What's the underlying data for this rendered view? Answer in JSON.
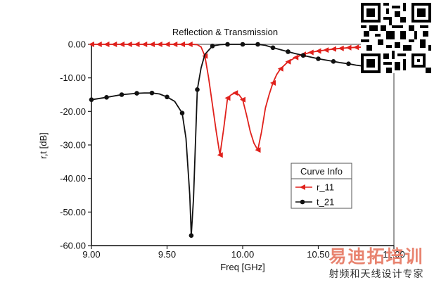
{
  "chart_data": {
    "type": "line",
    "title": "Reflection & Transmission",
    "xlabel": "Freq [GHz]",
    "ylabel": "r,t [dB]",
    "xlim": [
      9.0,
      11.0
    ],
    "ylim": [
      -60.0,
      0.0
    ],
    "x_ticks": [
      "9.00",
      "9.50",
      "10.00",
      "10.50",
      "11.00"
    ],
    "y_ticks": [
      "0.00",
      "-10.00",
      "-20.00",
      "-30.00",
      "-40.00",
      "-50.00",
      "-60.00"
    ],
    "grid": false,
    "legend": {
      "title": "Curve Info",
      "position": "right"
    },
    "series": [
      {
        "name": "r_11",
        "color": "#e0201b",
        "marker": "triangle-left",
        "points": [
          [
            9.0,
            0.0
          ],
          [
            9.05,
            0.0
          ],
          [
            9.1,
            0.0
          ],
          [
            9.15,
            0.0
          ],
          [
            9.2,
            0.0
          ],
          [
            9.25,
            0.0
          ],
          [
            9.3,
            0.0
          ],
          [
            9.35,
            0.0
          ],
          [
            9.4,
            0.0
          ],
          [
            9.45,
            0.0
          ],
          [
            9.5,
            0.0
          ],
          [
            9.55,
            0.0
          ],
          [
            9.6,
            0.0
          ],
          [
            9.65,
            0.0
          ],
          [
            9.7,
            -0.1
          ],
          [
            9.725,
            -0.8
          ],
          [
            9.75,
            -3.5
          ],
          [
            9.775,
            -10.0
          ],
          [
            9.8,
            -18.0
          ],
          [
            9.825,
            -26.0
          ],
          [
            9.85,
            -33.0
          ],
          [
            9.875,
            -25.0
          ],
          [
            9.9,
            -16.0
          ],
          [
            9.925,
            -15.0
          ],
          [
            9.95,
            -14.5
          ],
          [
            9.975,
            -15.0
          ],
          [
            10.0,
            -16.5
          ],
          [
            10.025,
            -21.0
          ],
          [
            10.05,
            -26.0
          ],
          [
            10.075,
            -29.5
          ],
          [
            10.1,
            -31.5
          ],
          [
            10.125,
            -26.0
          ],
          [
            10.15,
            -19.0
          ],
          [
            10.175,
            -15.0
          ],
          [
            10.2,
            -11.5
          ],
          [
            10.225,
            -9.0
          ],
          [
            10.25,
            -7.3
          ],
          [
            10.3,
            -5.2
          ],
          [
            10.35,
            -3.9
          ],
          [
            10.4,
            -3.0
          ],
          [
            10.45,
            -2.4
          ],
          [
            10.5,
            -2.0
          ],
          [
            10.55,
            -1.7
          ],
          [
            10.6,
            -1.4
          ],
          [
            10.65,
            -1.2
          ],
          [
            10.7,
            -1.0
          ],
          [
            10.75,
            -0.9
          ],
          [
            10.8,
            -0.8
          ]
        ],
        "marker_x": [
          9.0,
          9.05,
          9.1,
          9.15,
          9.2,
          9.25,
          9.3,
          9.35,
          9.4,
          9.45,
          9.5,
          9.55,
          9.6,
          9.65,
          9.75,
          9.85,
          9.9,
          9.95,
          10.0,
          10.1,
          10.2,
          10.25,
          10.3,
          10.35,
          10.4,
          10.45,
          10.5,
          10.55,
          10.6,
          10.65,
          10.7,
          10.75,
          10.8
        ]
      },
      {
        "name": "t_21",
        "color": "#111111",
        "marker": "circle",
        "points": [
          [
            9.0,
            -16.5
          ],
          [
            9.1,
            -15.8
          ],
          [
            9.2,
            -15.0
          ],
          [
            9.3,
            -14.6
          ],
          [
            9.35,
            -14.5
          ],
          [
            9.4,
            -14.5
          ],
          [
            9.45,
            -14.8
          ],
          [
            9.5,
            -15.7
          ],
          [
            9.55,
            -17.0
          ],
          [
            9.6,
            -20.5
          ],
          [
            9.625,
            -28.0
          ],
          [
            9.65,
            -45.0
          ],
          [
            9.66,
            -57.0
          ],
          [
            9.675,
            -46.0
          ],
          [
            9.7,
            -13.5
          ],
          [
            9.725,
            -7.0
          ],
          [
            9.75,
            -3.0
          ],
          [
            9.8,
            -0.5
          ],
          [
            9.85,
            -0.1
          ],
          [
            9.9,
            0.0
          ],
          [
            9.95,
            0.0
          ],
          [
            10.0,
            0.0
          ],
          [
            10.05,
            0.0
          ],
          [
            10.1,
            0.0
          ],
          [
            10.15,
            -0.3
          ],
          [
            10.2,
            -1.0
          ],
          [
            10.25,
            -1.6
          ],
          [
            10.3,
            -2.2
          ],
          [
            10.35,
            -2.8
          ],
          [
            10.4,
            -3.3
          ],
          [
            10.45,
            -3.8
          ],
          [
            10.5,
            -4.3
          ],
          [
            10.55,
            -4.7
          ],
          [
            10.6,
            -5.1
          ],
          [
            10.65,
            -5.5
          ],
          [
            10.7,
            -5.8
          ],
          [
            10.75,
            -6.2
          ],
          [
            10.8,
            -6.5
          ]
        ],
        "marker_x": [
          9.0,
          9.1,
          9.2,
          9.3,
          9.4,
          9.5,
          9.6,
          9.66,
          9.7,
          9.8,
          9.9,
          10.0,
          10.1,
          10.2,
          10.3,
          10.4,
          10.5,
          10.6,
          10.7,
          10.8
        ]
      }
    ]
  },
  "watermark": {
    "title": "易迪拓培训",
    "subtitle": "射频和天线设计专家"
  },
  "qr_code": {
    "icon": "qr-code-icon"
  }
}
